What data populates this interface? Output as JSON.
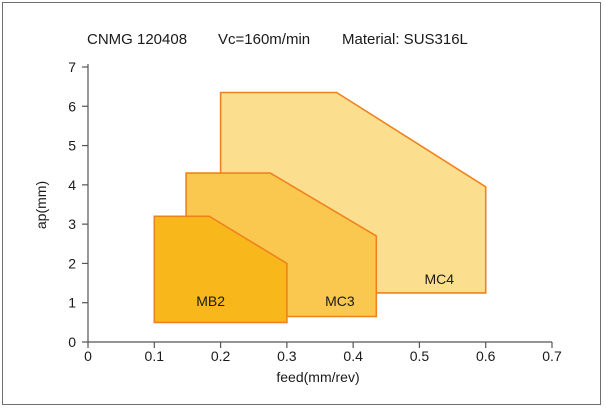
{
  "header": {
    "product": "CNMG 120408",
    "speed": "Vc=160m/min",
    "material": "Material: SUS316L"
  },
  "chart_data": {
    "type": "area",
    "title": "",
    "xlabel": "feed(mm/rev)",
    "ylabel": "ap(mm)",
    "xlim": [
      0,
      0.7
    ],
    "ylim": [
      0,
      7
    ],
    "x_ticks": [
      "0",
      "0.1",
      "0.2",
      "0.3",
      "0.4",
      "0.5",
      "0.6",
      "0.7"
    ],
    "y_ticks": [
      "0",
      "1",
      "2",
      "3",
      "4",
      "5",
      "6",
      "7"
    ],
    "grid": false,
    "series": [
      {
        "name": "MC4",
        "fill": "#fbdf8f",
        "stroke": "#f0821e",
        "points": [
          [
            0.2,
            0.5
          ],
          [
            0.2,
            6.35
          ],
          [
            0.375,
            6.35
          ],
          [
            0.6,
            3.95
          ],
          [
            0.6,
            1.25
          ],
          [
            0.2,
            1.25
          ]
        ],
        "label_at": [
          0.53,
          1.6
        ]
      },
      {
        "name": "MC3",
        "fill": "#fac84e",
        "stroke": "#f0821e",
        "points": [
          [
            0.148,
            0.5
          ],
          [
            0.148,
            4.3
          ],
          [
            0.275,
            4.3
          ],
          [
            0.435,
            2.7
          ],
          [
            0.435,
            0.65
          ],
          [
            0.148,
            0.65
          ]
        ],
        "label_at": [
          0.38,
          1.05
        ]
      },
      {
        "name": "MB2",
        "fill": "#f8b81c",
        "stroke": "#f0821e",
        "points": [
          [
            0.1,
            0.5
          ],
          [
            0.1,
            3.2
          ],
          [
            0.183,
            3.2
          ],
          [
            0.3,
            2.0
          ],
          [
            0.3,
            0.5
          ]
        ],
        "label_at": [
          0.185,
          1.05
        ]
      }
    ]
  }
}
